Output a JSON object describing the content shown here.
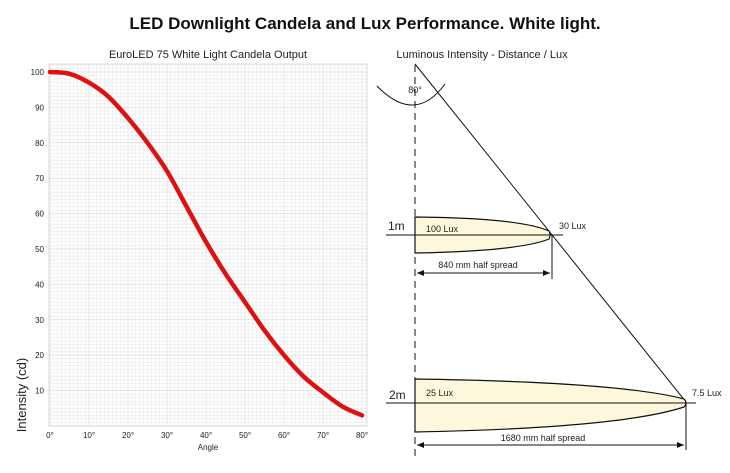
{
  "title": "LED Downlight Candela and Lux Performance. White light.",
  "chart_data": {
    "type": "line",
    "title": "EuroLED 75 White Light Candela Output",
    "xlabel": "Angle",
    "ylabel": "Intensity (cd)",
    "xlim": [
      0,
      80
    ],
    "ylim": [
      0,
      100
    ],
    "grid": true,
    "x_ticks": [
      "0°",
      "10°",
      "20°",
      "30°",
      "40°",
      "50°",
      "60°",
      "70°",
      "80°"
    ],
    "y_ticks": [
      "10",
      "20",
      "30",
      "40",
      "50",
      "60",
      "70",
      "80",
      "90",
      "100"
    ],
    "series": [
      {
        "x": [
          0,
          5,
          10,
          15,
          20,
          25,
          30,
          35,
          40,
          45,
          50,
          55,
          60,
          65,
          70,
          75,
          80
        ],
        "values": [
          100,
          99.5,
          97,
          93,
          87,
          80,
          72,
          62,
          52,
          43,
          35,
          27,
          20,
          14,
          9.5,
          5.5,
          3
        ],
        "color": "#dd1111"
      }
    ]
  },
  "diagram": {
    "title": "Luminous Intensity - Distance / Lux",
    "angle_label": "80°",
    "levels": [
      {
        "distance": "1m",
        "center_lux": "100 Lux",
        "edge_lux": "30 Lux",
        "spread": "840 mm half spread"
      },
      {
        "distance": "2m",
        "center_lux": "25 Lux",
        "edge_lux": "7.5 Lux",
        "spread": "1680 mm half spread"
      }
    ],
    "fill_color": "#fdf8dc"
  }
}
